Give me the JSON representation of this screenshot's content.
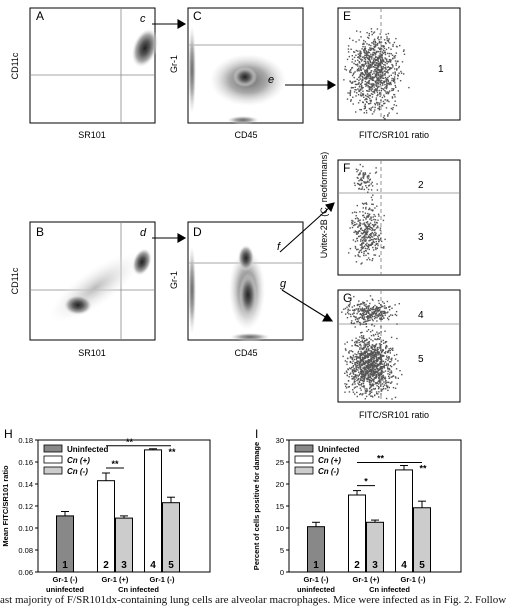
{
  "panels": {
    "A": {
      "letter": "A",
      "xlabel": "SR101",
      "ylabel": "CD11c"
    },
    "B": {
      "letter": "B",
      "xlabel": "SR101",
      "ylabel": "CD11c"
    },
    "C": {
      "letter": "C",
      "xlabel": "CD45",
      "ylabel": "Gr-1"
    },
    "D": {
      "letter": "D",
      "xlabel": "CD45",
      "ylabel": "Gr-1"
    },
    "E": {
      "letter": "E",
      "xlabel": "FITC/SR101 ratio",
      "gate": "1"
    },
    "F": {
      "letter": "F",
      "gates": [
        "2",
        "3"
      ]
    },
    "G": {
      "letter": "G",
      "xlabel": "FITC/SR101 ratio",
      "gates": [
        "4",
        "5"
      ]
    },
    "shared_ylabel": "Uvitex-2B (C. neoformans)"
  },
  "arrow_labels": {
    "c": "c",
    "d": "d",
    "e": "e",
    "f": "f",
    "g": "g"
  },
  "chart_data": [
    {
      "type": "bar",
      "panel": "H",
      "ylabel": "Mean FITC/SR101 ratio",
      "ylim": [
        0.06,
        0.18
      ],
      "yticks": [
        "0.06",
        "0.08",
        "0.10",
        "0.12",
        "0.14",
        "0.16",
        "0.18"
      ],
      "legend": [
        "Uninfected",
        "Cn (+)",
        "Cn (-)"
      ],
      "bars": [
        {
          "label": "1",
          "value": 0.111,
          "err": 0.004,
          "style": "uninfected"
        },
        {
          "label": "2",
          "value": 0.143,
          "err": 0.007,
          "style": "cnpos"
        },
        {
          "label": "3",
          "value": 0.109,
          "err": 0.002,
          "style": "cnneg"
        },
        {
          "label": "4",
          "value": 0.171,
          "err": 0.001,
          "style": "cnpos"
        },
        {
          "label": "5",
          "value": 0.123,
          "err": 0.005,
          "style": "cnneg"
        }
      ],
      "significance": [
        "**",
        "**",
        "**"
      ],
      "group_labels": [
        "Gr-1 (-)",
        "Gr-1 (+)",
        "Gr-1 (-)"
      ],
      "sub_labels": [
        "uninfected",
        "Cn infected"
      ]
    },
    {
      "type": "bar",
      "panel": "I",
      "ylabel": "Percent of cells positive for damage",
      "ylim": [
        0,
        30
      ],
      "yticks": [
        "0",
        "5",
        "10",
        "15",
        "20",
        "25",
        "30"
      ],
      "legend": [
        "Uninfected",
        "Cn (+)",
        "Cn (-)"
      ],
      "bars": [
        {
          "label": "1",
          "value": 10.3,
          "err": 1.0,
          "style": "uninfected"
        },
        {
          "label": "2",
          "value": 17.5,
          "err": 1.0,
          "style": "cnpos"
        },
        {
          "label": "3",
          "value": 11.3,
          "err": 0.5,
          "style": "cnneg"
        },
        {
          "label": "4",
          "value": 23.2,
          "err": 1.0,
          "style": "cnpos"
        },
        {
          "label": "5",
          "value": 14.6,
          "err": 1.5,
          "style": "cnneg"
        }
      ],
      "significance": [
        "*",
        "**",
        "**"
      ],
      "group_labels": [
        "Gr-1 (-)",
        "Gr-1 (+)",
        "Gr-1 (-)"
      ],
      "sub_labels": [
        "uninfected",
        "Cn infected"
      ]
    }
  ],
  "caption": "ast majority of F/SR101dx-containing lung cells are alveolar macrophages. Mice were infected as in Fig. 2. Follow"
}
